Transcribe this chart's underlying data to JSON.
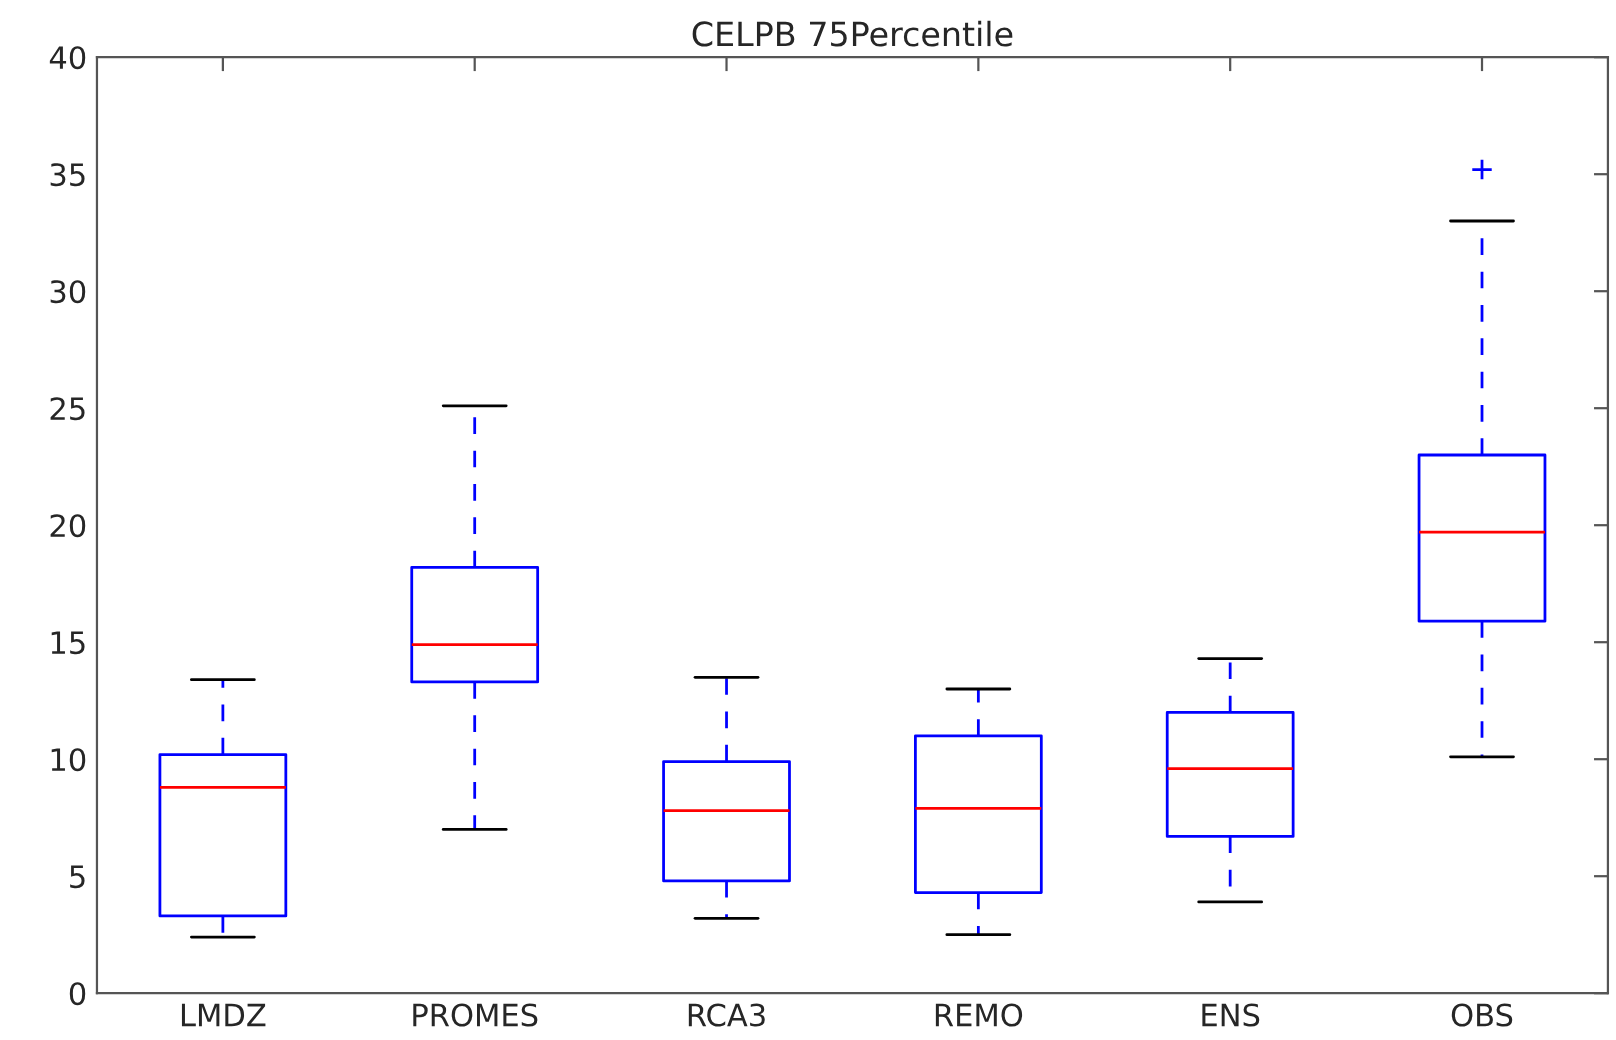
{
  "chart_data": {
    "type": "box",
    "title": "CELPB 75Percentile",
    "categories": [
      "LMDZ",
      "PROMES",
      "RCA3",
      "REMO",
      "ENS",
      "OBS"
    ],
    "series": [
      {
        "color": "#0000ff",
        "boxes": [
          {
            "low": 2.4,
            "q1": 3.3,
            "median": 8.8,
            "q3": 10.2,
            "high": 13.4
          },
          {
            "low": 7.0,
            "q1": 13.3,
            "median": 14.9,
            "q3": 18.2,
            "high": 25.1
          },
          {
            "low": 3.2,
            "q1": 4.8,
            "median": 7.8,
            "q3": 9.9,
            "high": 13.5
          },
          {
            "low": 2.5,
            "q1": 4.3,
            "median": 7.9,
            "q3": 11.0,
            "high": 13.0
          },
          {
            "low": 3.9,
            "q1": 6.7,
            "median": 9.6,
            "q3": 12.0,
            "high": 14.3
          },
          {
            "low": 10.1,
            "q1": 15.9,
            "median": 19.7,
            "q3": 23.0,
            "high": 33.0,
            "outliers": [
              35.2
            ]
          }
        ]
      }
    ],
    "ylim": [
      0,
      40
    ],
    "yticks": [
      0,
      5,
      10,
      15,
      20,
      25,
      30,
      35,
      40
    ],
    "grid": false
  }
}
